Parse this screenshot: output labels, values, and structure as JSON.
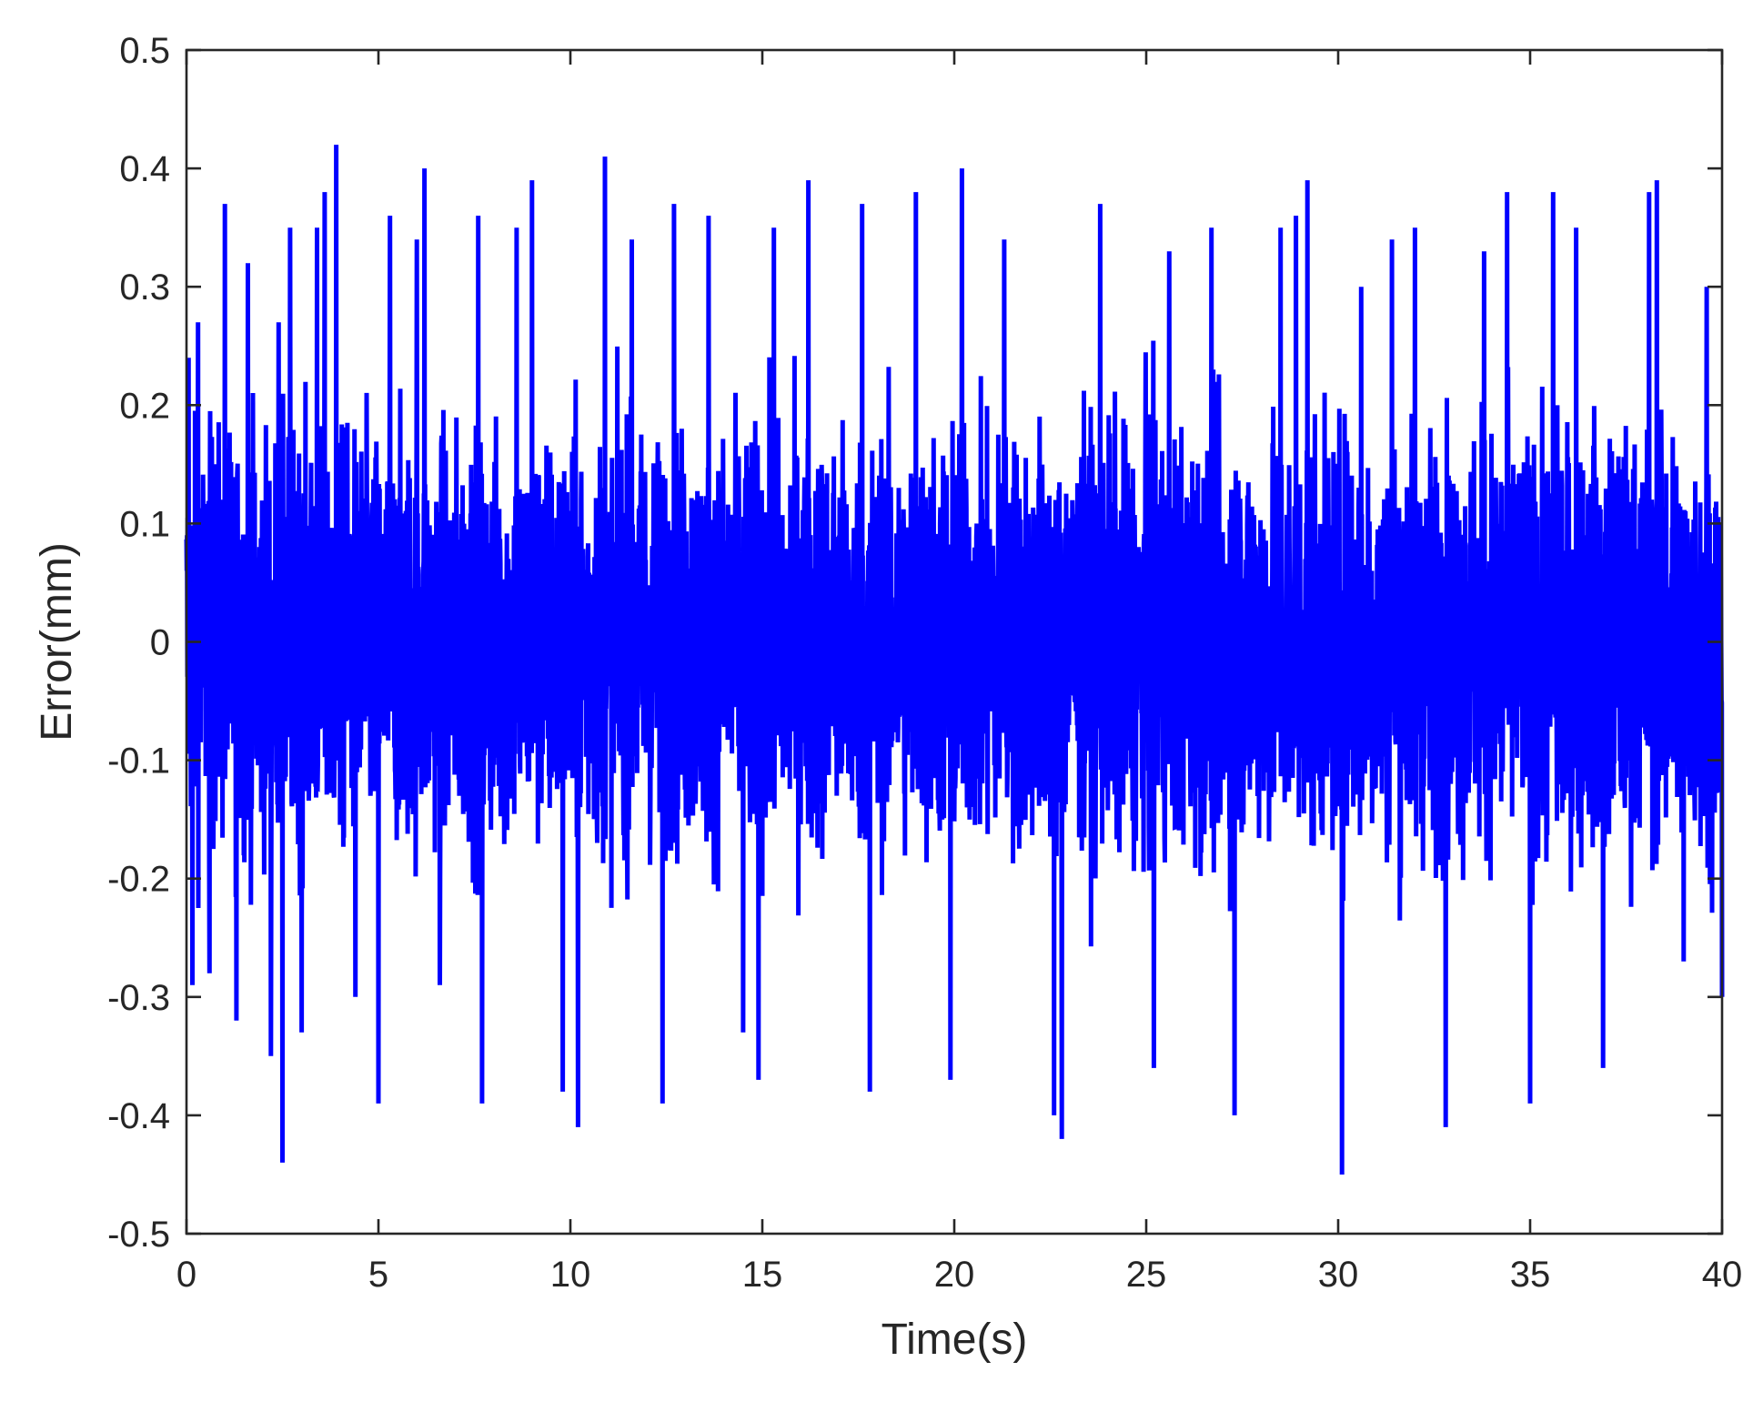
{
  "chart_data": {
    "type": "line",
    "title": "",
    "xlabel": "Time(s)",
    "ylabel": "Error(mm)",
    "xlim": [
      0,
      40
    ],
    "ylim": [
      -0.5,
      0.5
    ],
    "x_ticks": [
      0,
      5,
      10,
      15,
      20,
      25,
      30,
      35,
      40
    ],
    "x_tick_labels": [
      "0",
      "5",
      "10",
      "15",
      "20",
      "25",
      "30",
      "35",
      "40"
    ],
    "y_ticks": [
      0.5,
      0.4,
      0.3,
      0.2,
      0.1,
      0,
      -0.1,
      -0.2,
      -0.3,
      -0.4,
      -0.5
    ],
    "y_tick_labels": [
      "0.5",
      "0.4",
      "0.3",
      "0.2",
      "0.1",
      "0",
      "-0.1",
      "-0.2",
      "-0.3",
      "-0.4",
      "-0.5"
    ],
    "grid": false,
    "legend": "none",
    "series": [
      {
        "color": "#0000ff",
        "description_values": {
          "x_start": 0,
          "x_end": 40,
          "y_max": 0.42,
          "y_max_at": 3.9,
          "y_min": -0.45,
          "y_min_at": 30.1
        },
        "peaks": [
          {
            "x": 0.05,
            "y": 0.24
          },
          {
            "x": 0.15,
            "y": -0.29
          },
          {
            "x": 0.3,
            "y": 0.27
          },
          {
            "x": 0.6,
            "y": -0.28
          },
          {
            "x": 1.0,
            "y": 0.37
          },
          {
            "x": 1.3,
            "y": -0.32
          },
          {
            "x": 1.6,
            "y": 0.32
          },
          {
            "x": 2.2,
            "y": -0.35
          },
          {
            "x": 2.4,
            "y": 0.27
          },
          {
            "x": 2.5,
            "y": -0.44
          },
          {
            "x": 2.7,
            "y": 0.35
          },
          {
            "x": 3.0,
            "y": -0.33
          },
          {
            "x": 3.4,
            "y": 0.35
          },
          {
            "x": 3.6,
            "y": 0.38
          },
          {
            "x": 3.9,
            "y": 0.42
          },
          {
            "x": 4.4,
            "y": -0.3
          },
          {
            "x": 5.0,
            "y": -0.39
          },
          {
            "x": 5.3,
            "y": 0.36
          },
          {
            "x": 6.0,
            "y": 0.34
          },
          {
            "x": 6.2,
            "y": 0.4
          },
          {
            "x": 6.6,
            "y": -0.29
          },
          {
            "x": 7.6,
            "y": 0.36
          },
          {
            "x": 7.7,
            "y": -0.39
          },
          {
            "x": 8.6,
            "y": 0.35
          },
          {
            "x": 9.0,
            "y": 0.39
          },
          {
            "x": 9.8,
            "y": -0.38
          },
          {
            "x": 10.2,
            "y": -0.41
          },
          {
            "x": 10.9,
            "y": 0.41
          },
          {
            "x": 11.6,
            "y": 0.34
          },
          {
            "x": 12.4,
            "y": -0.39
          },
          {
            "x": 12.7,
            "y": 0.37
          },
          {
            "x": 13.6,
            "y": 0.36
          },
          {
            "x": 14.5,
            "y": -0.33
          },
          {
            "x": 14.9,
            "y": -0.37
          },
          {
            "x": 15.3,
            "y": 0.35
          },
          {
            "x": 16.2,
            "y": 0.39
          },
          {
            "x": 17.6,
            "y": 0.37
          },
          {
            "x": 17.8,
            "y": -0.38
          },
          {
            "x": 19.0,
            "y": 0.38
          },
          {
            "x": 19.9,
            "y": -0.37
          },
          {
            "x": 20.2,
            "y": 0.4
          },
          {
            "x": 21.3,
            "y": 0.34
          },
          {
            "x": 22.6,
            "y": -0.4
          },
          {
            "x": 22.8,
            "y": -0.42
          },
          {
            "x": 23.8,
            "y": 0.37
          },
          {
            "x": 25.2,
            "y": -0.36
          },
          {
            "x": 25.6,
            "y": 0.33
          },
          {
            "x": 26.7,
            "y": 0.35
          },
          {
            "x": 27.3,
            "y": -0.4
          },
          {
            "x": 28.5,
            "y": 0.35
          },
          {
            "x": 28.9,
            "y": 0.36
          },
          {
            "x": 29.2,
            "y": 0.39
          },
          {
            "x": 30.1,
            "y": -0.45
          },
          {
            "x": 30.6,
            "y": 0.3
          },
          {
            "x": 31.4,
            "y": 0.34
          },
          {
            "x": 32.0,
            "y": 0.35
          },
          {
            "x": 32.8,
            "y": -0.41
          },
          {
            "x": 33.8,
            "y": 0.33
          },
          {
            "x": 34.4,
            "y": 0.38
          },
          {
            "x": 35.0,
            "y": -0.39
          },
          {
            "x": 35.6,
            "y": 0.38
          },
          {
            "x": 36.2,
            "y": 0.35
          },
          {
            "x": 36.9,
            "y": -0.36
          },
          {
            "x": 38.1,
            "y": 0.38
          },
          {
            "x": 38.3,
            "y": 0.39
          },
          {
            "x": 39.0,
            "y": -0.27
          },
          {
            "x": 39.6,
            "y": 0.3
          },
          {
            "x": 40.0,
            "y": -0.3
          }
        ]
      }
    ]
  }
}
